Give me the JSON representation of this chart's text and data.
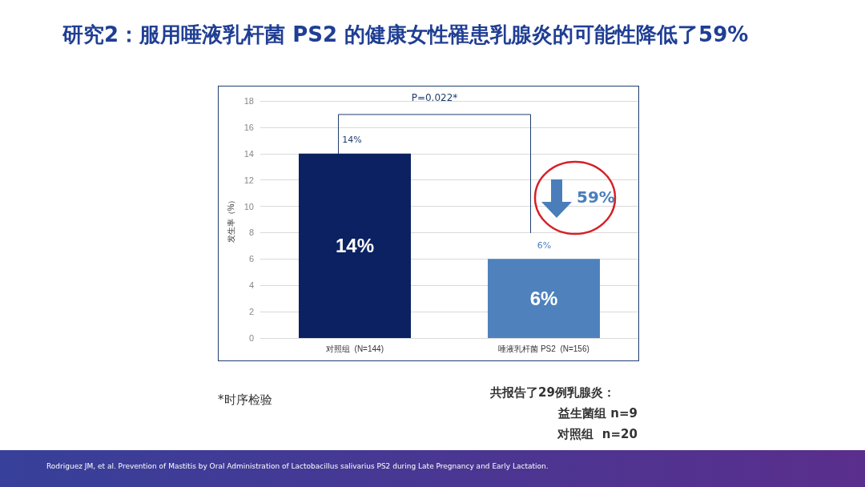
{
  "chart_data": {
    "type": "bar",
    "title": "研究2：服用唾液乳杆菌 PS2 的健康女性罹患乳腺炎的可能性降低了59%",
    "ylabel": "发生率（%）",
    "categories": [
      "对照组  (N=144)",
      "唾液乳杆菌 PS2  (N=156)"
    ],
    "values": [
      14,
      6
    ],
    "colors": [
      "#0b2161",
      "#4f81bd"
    ],
    "value_labels": [
      "14%",
      "6%"
    ],
    "ylim": [
      0,
      18
    ],
    "yticks": [
      0,
      2,
      4,
      6,
      8,
      10,
      12,
      14,
      16,
      18
    ],
    "grid": "y",
    "annotations": [
      "P=0.022*",
      "59%",
      "*时序检验",
      "共报告了29例乳腺炎：",
      "益生菌组 n=9",
      "对照组  n=20",
      "Rodriguez JM, et al. Prevention of Mastitis by Oral Administration of Lactobacillus salivarius PS2 during Late Pregnancy and Early Lactation."
    ]
  }
}
